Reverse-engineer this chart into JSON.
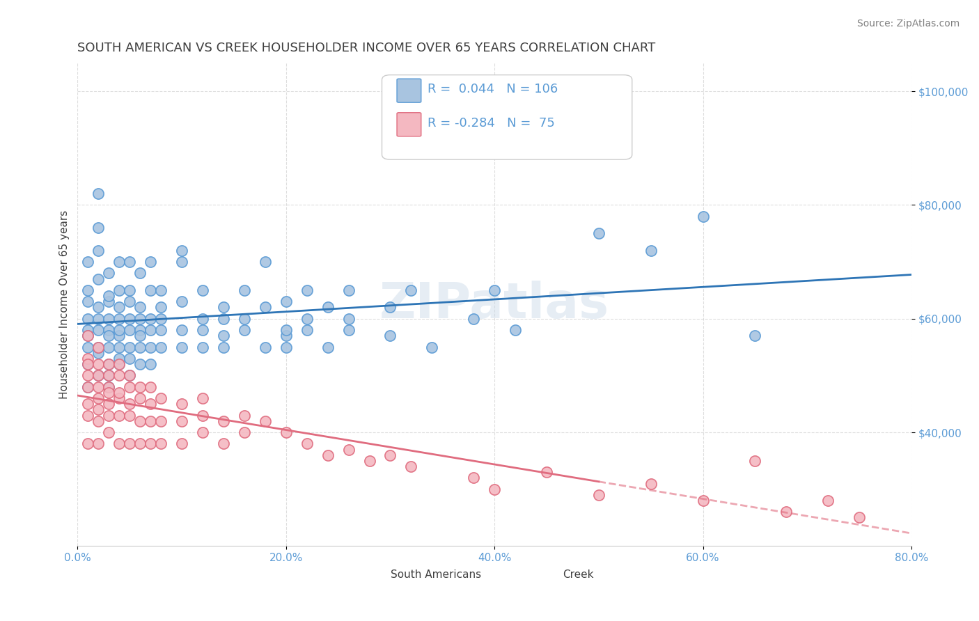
{
  "title": "SOUTH AMERICAN VS CREEK HOUSEHOLDER INCOME OVER 65 YEARS CORRELATION CHART",
  "source_text": "Source: ZipAtlas.com",
  "xlabel": "",
  "ylabel": "Householder Income Over 65 years",
  "watermark": "ZIPatlas",
  "xlim": [
    0.0,
    0.8
  ],
  "ylim": [
    20000,
    105000
  ],
  "xtick_labels": [
    "0.0%",
    "20.0%",
    "40.0%",
    "60.0%",
    "80.0%"
  ],
  "xtick_vals": [
    0.0,
    0.2,
    0.4,
    0.6,
    0.8
  ],
  "ytick_labels": [
    "$40,000",
    "$60,000",
    "$80,000",
    "$100,000"
  ],
  "ytick_vals": [
    40000,
    60000,
    80000,
    100000
  ],
  "series1_name": "South Americans",
  "series1_color": "#a8c4e0",
  "series1_edge_color": "#5b9bd5",
  "series1_R": 0.044,
  "series1_N": 106,
  "series1_line_color": "#2e75b6",
  "series2_name": "Creek",
  "series2_color": "#f4b8c1",
  "series2_edge_color": "#e06c7f",
  "series2_R": -0.284,
  "series2_N": 75,
  "series2_line_color": "#e06c7f",
  "title_color": "#404040",
  "source_color": "#808080",
  "axis_label_color": "#404040",
  "tick_label_color": "#5b9bd5",
  "background_color": "#ffffff",
  "grid_color": "#d0d0d0",
  "legend_R_color": "#5b9bd5",
  "legend_N_color": "#5b9bd5",
  "blue_scatter_x": [
    0.01,
    0.01,
    0.01,
    0.01,
    0.01,
    0.01,
    0.01,
    0.01,
    0.01,
    0.02,
    0.02,
    0.02,
    0.02,
    0.02,
    0.02,
    0.02,
    0.02,
    0.02,
    0.02,
    0.03,
    0.03,
    0.03,
    0.03,
    0.03,
    0.03,
    0.03,
    0.03,
    0.03,
    0.03,
    0.04,
    0.04,
    0.04,
    0.04,
    0.04,
    0.04,
    0.04,
    0.04,
    0.04,
    0.05,
    0.05,
    0.05,
    0.05,
    0.05,
    0.05,
    0.05,
    0.05,
    0.06,
    0.06,
    0.06,
    0.06,
    0.06,
    0.06,
    0.06,
    0.07,
    0.07,
    0.07,
    0.07,
    0.07,
    0.07,
    0.08,
    0.08,
    0.08,
    0.08,
    0.08,
    0.1,
    0.1,
    0.1,
    0.1,
    0.1,
    0.12,
    0.12,
    0.12,
    0.12,
    0.14,
    0.14,
    0.14,
    0.14,
    0.16,
    0.16,
    0.16,
    0.18,
    0.18,
    0.18,
    0.2,
    0.2,
    0.2,
    0.2,
    0.22,
    0.22,
    0.22,
    0.24,
    0.24,
    0.26,
    0.26,
    0.26,
    0.3,
    0.3,
    0.32,
    0.34,
    0.38,
    0.4,
    0.42,
    0.5,
    0.55,
    0.6,
    0.65
  ],
  "blue_scatter_y": [
    55000,
    60000,
    65000,
    58000,
    63000,
    70000,
    52000,
    48000,
    57000,
    62000,
    58000,
    54000,
    67000,
    72000,
    76000,
    50000,
    55000,
    82000,
    60000,
    55000,
    60000,
    63000,
    58000,
    52000,
    68000,
    57000,
    64000,
    50000,
    48000,
    55000,
    60000,
    62000,
    57000,
    52000,
    65000,
    70000,
    58000,
    53000,
    60000,
    55000,
    58000,
    65000,
    70000,
    53000,
    50000,
    63000,
    58000,
    62000,
    55000,
    68000,
    52000,
    60000,
    57000,
    65000,
    58000,
    60000,
    55000,
    52000,
    70000,
    55000,
    62000,
    58000,
    65000,
    60000,
    63000,
    58000,
    55000,
    70000,
    72000,
    60000,
    65000,
    58000,
    55000,
    62000,
    57000,
    60000,
    55000,
    58000,
    65000,
    60000,
    62000,
    55000,
    70000,
    57000,
    63000,
    58000,
    55000,
    60000,
    65000,
    58000,
    62000,
    55000,
    58000,
    65000,
    60000,
    57000,
    62000,
    65000,
    55000,
    60000,
    65000,
    58000,
    75000,
    72000,
    78000,
    57000
  ],
  "pink_scatter_x": [
    0.01,
    0.01,
    0.01,
    0.01,
    0.01,
    0.01,
    0.01,
    0.01,
    0.02,
    0.02,
    0.02,
    0.02,
    0.02,
    0.02,
    0.02,
    0.02,
    0.03,
    0.03,
    0.03,
    0.03,
    0.03,
    0.03,
    0.03,
    0.04,
    0.04,
    0.04,
    0.04,
    0.04,
    0.04,
    0.05,
    0.05,
    0.05,
    0.05,
    0.05,
    0.06,
    0.06,
    0.06,
    0.06,
    0.07,
    0.07,
    0.07,
    0.07,
    0.08,
    0.08,
    0.08,
    0.1,
    0.1,
    0.1,
    0.12,
    0.12,
    0.12,
    0.14,
    0.14,
    0.16,
    0.16,
    0.18,
    0.2,
    0.22,
    0.24,
    0.26,
    0.28,
    0.3,
    0.32,
    0.38,
    0.4,
    0.45,
    0.5,
    0.55,
    0.6,
    0.65,
    0.68,
    0.72,
    0.75
  ],
  "pink_scatter_y": [
    57000,
    53000,
    48000,
    52000,
    45000,
    50000,
    43000,
    38000,
    55000,
    50000,
    46000,
    52000,
    48000,
    42000,
    38000,
    44000,
    52000,
    48000,
    45000,
    50000,
    43000,
    40000,
    47000,
    50000,
    46000,
    52000,
    43000,
    38000,
    47000,
    48000,
    43000,
    50000,
    38000,
    45000,
    46000,
    42000,
    48000,
    38000,
    45000,
    42000,
    48000,
    38000,
    46000,
    42000,
    38000,
    45000,
    42000,
    38000,
    43000,
    40000,
    46000,
    42000,
    38000,
    43000,
    40000,
    42000,
    40000,
    38000,
    36000,
    37000,
    35000,
    36000,
    34000,
    32000,
    30000,
    33000,
    29000,
    31000,
    28000,
    35000,
    26000,
    28000,
    25000
  ]
}
